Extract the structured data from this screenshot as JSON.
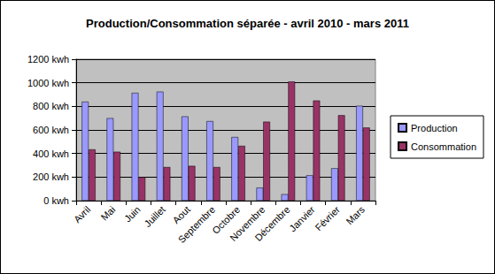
{
  "chart_data": {
    "type": "bar",
    "title": "Production/Consommation séparée - avril 2010 - mars 2011",
    "categories": [
      "Avril",
      "Mai",
      "Juin",
      "Juillet",
      "Aout",
      "Septembre",
      "Octobre",
      "Novembre",
      "Décembre",
      "Janvier",
      "Février",
      "Mars"
    ],
    "series": [
      {
        "name": "Production",
        "color": "#9999ff",
        "values": [
          840,
          700,
          915,
          925,
          715,
          675,
          540,
          110,
          55,
          215,
          275,
          805
        ]
      },
      {
        "name": "Consommation",
        "color": "#993366",
        "values": [
          435,
          415,
          200,
          285,
          295,
          285,
          465,
          670,
          1010,
          850,
          725,
          620
        ]
      }
    ],
    "ylim": [
      0,
      1200
    ],
    "yticks": [
      {
        "value": 0,
        "label": "0 kwh"
      },
      {
        "value": 200,
        "label": "200 kwh"
      },
      {
        "value": 400,
        "label": "400 kwh"
      },
      {
        "value": 600,
        "label": "600 kwh"
      },
      {
        "value": 800,
        "label": "800 kwh"
      },
      {
        "value": 1000,
        "label": "1000 kwh"
      },
      {
        "value": 1200,
        "label": "1200 kwh"
      }
    ],
    "grid": true,
    "legend": "right"
  }
}
